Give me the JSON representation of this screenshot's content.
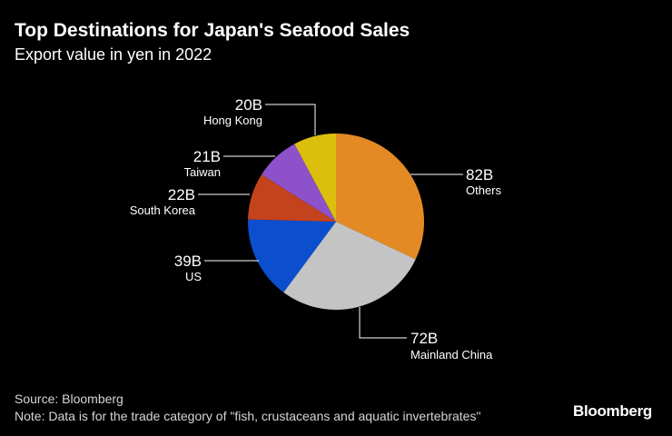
{
  "header": {
    "title": "Top Destinations for Japan's Seafood Sales",
    "subtitle": "Export value in yen in 2022"
  },
  "chart_data": {
    "type": "pie",
    "title": "Top Destinations for Japan's Seafood Sales",
    "subtitle": "Export value in yen in 2022",
    "unit": "B",
    "start_angle_deg": 0,
    "direction": "clockwise",
    "slices": [
      {
        "label": "Others",
        "value": 82,
        "value_label": "82B",
        "color": "#e48a24"
      },
      {
        "label": "Mainland China",
        "value": 72,
        "value_label": "72B",
        "color": "#c4c4c4"
      },
      {
        "label": "US",
        "value": 39,
        "value_label": "39B",
        "color": "#0c4fce"
      },
      {
        "label": "South Korea",
        "value": 22,
        "value_label": "22B",
        "color": "#c4421c"
      },
      {
        "label": "Taiwan",
        "value": 21,
        "value_label": "21B",
        "color": "#8d52c9"
      },
      {
        "label": "Hong Kong",
        "value": 20,
        "value_label": "20B",
        "color": "#dcbf0d"
      }
    ]
  },
  "footer": {
    "source": "Source: Bloomberg",
    "note": "Note: Data is for the trade category of \"fish, crustaceans and aquatic invertebrates\""
  },
  "brand": {
    "logo_text": "Bloomberg"
  }
}
